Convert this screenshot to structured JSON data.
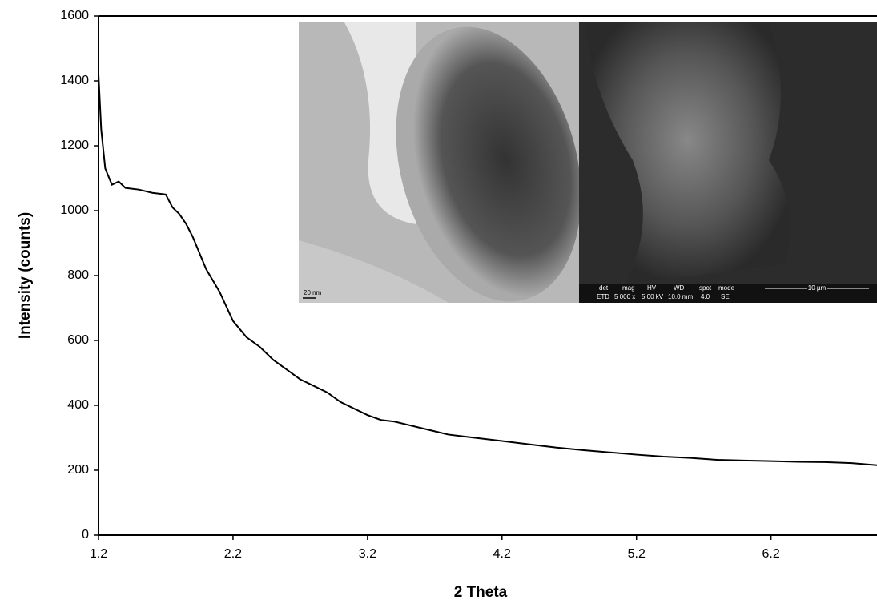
{
  "chart_data": {
    "type": "line",
    "x_label": "2 Theta",
    "y_label": "Intensity (counts)",
    "x": [
      1.2,
      1.22,
      1.25,
      1.3,
      1.35,
      1.4,
      1.5,
      1.6,
      1.7,
      1.75,
      1.8,
      1.85,
      1.9,
      2.0,
      2.1,
      2.2,
      2.3,
      2.4,
      2.5,
      2.6,
      2.7,
      2.8,
      2.9,
      3.0,
      3.1,
      3.2,
      3.3,
      3.4,
      3.5,
      3.6,
      3.7,
      3.8,
      3.9,
      4.0,
      4.2,
      4.4,
      4.6,
      4.8,
      5.0,
      5.2,
      5.4,
      5.6,
      5.8,
      6.0,
      6.2,
      6.4,
      6.6,
      6.8,
      7.0
    ],
    "series": [
      {
        "color": "#000000",
        "values": [
          1420,
          1250,
          1130,
          1080,
          1090,
          1070,
          1065,
          1055,
          1050,
          1010,
          990,
          960,
          920,
          820,
          750,
          660,
          610,
          580,
          540,
          510,
          480,
          460,
          440,
          410,
          390,
          370,
          355,
          350,
          340,
          330,
          320,
          310,
          305,
          300,
          290,
          280,
          270,
          262,
          255,
          248,
          242,
          238,
          232,
          230,
          228,
          226,
          225,
          222,
          215
        ]
      }
    ],
    "xlim": [
      1.2,
      7.0
    ],
    "xticks": [
      1.2,
      2.2,
      3.2,
      4.2,
      5.2,
      6.2
    ],
    "ylim": [
      0,
      1600
    ],
    "yticks": [
      0,
      200,
      400,
      600,
      800,
      1000,
      1200,
      1400,
      1600
    ],
    "grid": false,
    "annotations": [
      "20 nm",
      "det",
      "mag",
      "HV",
      "WD",
      "spot",
      "mode",
      "ETD",
      "5 000 x",
      "5.00 kV",
      "10.0 mm",
      "4.0",
      "SE",
      "10 µm"
    ]
  }
}
